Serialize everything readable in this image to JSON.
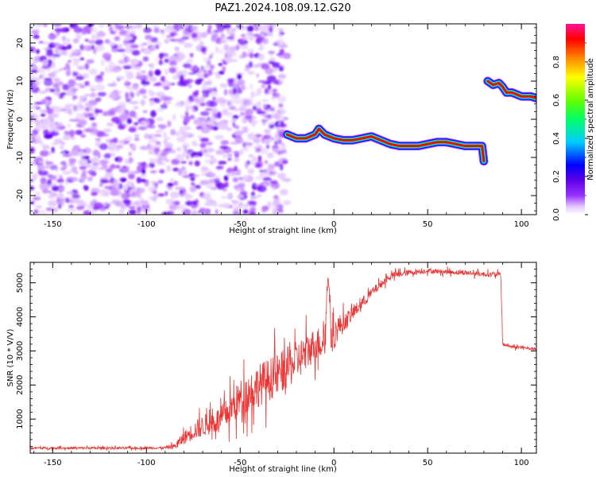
{
  "title": "PAZ1.2024.108.09.12.G20",
  "chart_data": [
    {
      "type": "heatmap",
      "xlabel": "Height of straight line (km)",
      "ylabel": "Frequency (Hz)",
      "xlim": [
        -162,
        108
      ],
      "ylim": [
        -25,
        25
      ],
      "x_ticks": [
        -150,
        -100,
        -50,
        0,
        50,
        100
      ],
      "y_ticks": [
        -20,
        -10,
        0,
        10,
        20
      ],
      "colorbar": {
        "label": "Normalized spectral amplitude",
        "range": [
          0,
          1
        ],
        "ticks": [
          0.0,
          0.2,
          0.4,
          0.6,
          0.8
        ],
        "colormap": [
          "#ffffff",
          "#e6ccff",
          "#9933ff",
          "#5c00e6",
          "#0000ff",
          "#00ccff",
          "#00ff66",
          "#66ff00",
          "#ffff00",
          "#ff8800",
          "#ff0000",
          "#ff1493"
        ]
      },
      "noise_region_x": [
        -162,
        -25
      ],
      "signal_track": {
        "segments": [
          {
            "x": [
              -25,
              -20,
              -15,
              -10,
              -8,
              -5,
              0,
              5,
              10,
              15,
              20,
              25,
              30,
              35,
              40,
              45,
              50,
              55,
              60,
              65,
              70,
              75,
              79,
              80
            ],
            "y": [
              -4,
              -5,
              -5,
              -4,
              -2.5,
              -4,
              -5,
              -5.5,
              -5.5,
              -5,
              -4.5,
              -5.5,
              -6.5,
              -7,
              -7,
              -7,
              -6.5,
              -6,
              -6,
              -6.5,
              -7,
              -7,
              -7,
              -11
            ]
          },
          {
            "x": [
              82,
              85,
              88,
              90,
              92,
              95,
              100,
              105,
              108
            ],
            "y": [
              10,
              9,
              9.5,
              8.5,
              7,
              7,
              6,
              6,
              5.5
            ]
          }
        ]
      }
    },
    {
      "type": "line",
      "xlabel": "Height of straight line (km)",
      "ylabel": "SNR (10 * V/V)",
      "xlim": [
        -162,
        108
      ],
      "ylim": [
        0,
        5600
      ],
      "x_ticks": [
        -150,
        -100,
        -50,
        0,
        50,
        100
      ],
      "y_ticks": [
        1000,
        2000,
        3000,
        4000,
        5000
      ],
      "color": "#ee3333",
      "series": [
        {
          "x": [
            -162,
            -100,
            -90,
            -85,
            -80,
            -75,
            -70,
            -60,
            -50,
            -40,
            -30,
            -20,
            -10,
            -5,
            -3,
            -1,
            0,
            2,
            5,
            10,
            20,
            30,
            35,
            40,
            50,
            60,
            70,
            80,
            89,
            90,
            95,
            100,
            108
          ],
          "y": [
            150,
            150,
            160,
            200,
            450,
            650,
            800,
            1000,
            1600,
            2000,
            2300,
            2700,
            3200,
            3300,
            5300,
            3200,
            3400,
            3700,
            3800,
            4100,
            4700,
            5200,
            5250,
            5300,
            5350,
            5320,
            5300,
            5250,
            5250,
            3200,
            3120,
            3100,
            3050
          ],
          "noise": [
            50,
            50,
            60,
            120,
            280,
            380,
            450,
            550,
            800,
            900,
            900,
            850,
            700,
            650,
            300,
            600,
            600,
            550,
            400,
            300,
            200,
            150,
            130,
            120,
            100,
            100,
            100,
            100,
            100,
            80,
            70,
            70,
            60
          ]
        }
      ]
    }
  ]
}
